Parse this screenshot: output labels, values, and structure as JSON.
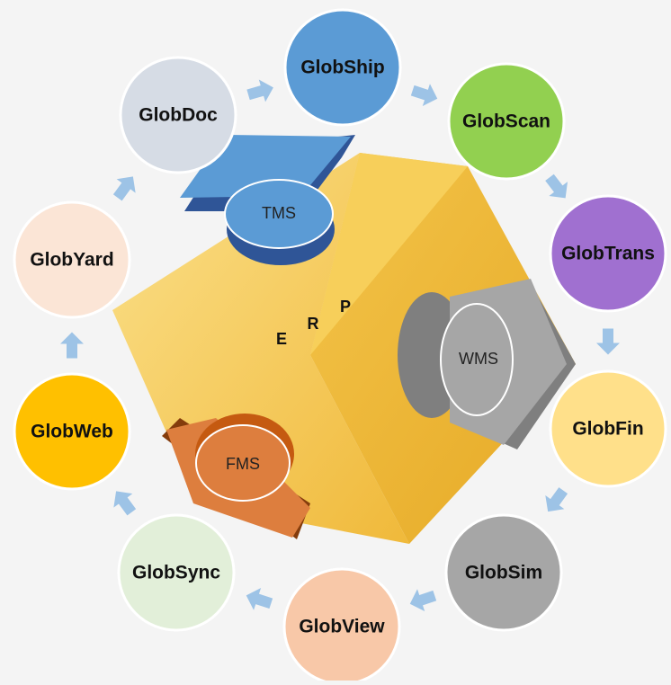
{
  "nodes": [
    {
      "label": "GlobShip"
    },
    {
      "label": "GlobScan"
    },
    {
      "label": "GlobTrans"
    },
    {
      "label": "GlobFin"
    },
    {
      "label": "GlobSim"
    },
    {
      "label": "GlobView"
    },
    {
      "label": "GlobSync"
    },
    {
      "label": "GlobWeb"
    },
    {
      "label": "GlobYard"
    },
    {
      "label": "GlobDoc"
    }
  ],
  "center": {
    "letters": [
      "E",
      "R",
      "P"
    ]
  },
  "modules": [
    {
      "label": "TMS"
    },
    {
      "label": "WMS"
    },
    {
      "label": "FMS"
    }
  ]
}
